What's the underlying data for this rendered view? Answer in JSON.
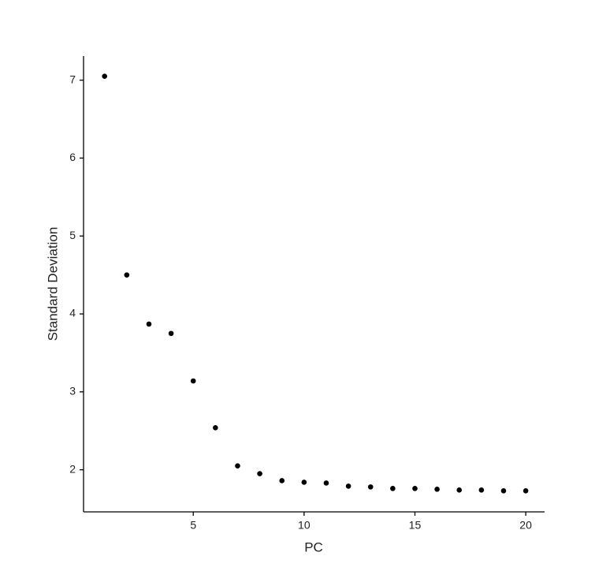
{
  "chart_data": {
    "type": "scatter",
    "xlabel": "PC",
    "ylabel": "Standard Deviation",
    "x": [
      1,
      2,
      3,
      4,
      5,
      6,
      7,
      8,
      9,
      10,
      11,
      12,
      13,
      14,
      15,
      16,
      17,
      18,
      19,
      20
    ],
    "values": [
      7.05,
      4.5,
      3.87,
      3.75,
      3.14,
      2.54,
      2.05,
      1.95,
      1.86,
      1.84,
      1.83,
      1.79,
      1.78,
      1.76,
      1.76,
      1.75,
      1.74,
      1.74,
      1.73,
      1.73
    ],
    "color": "#000000",
    "xlim": [
      0.05,
      20.85
    ],
    "xticks": [
      5,
      10,
      15,
      20
    ],
    "ylim": [
      1.46,
      7.31
    ],
    "yticks": [
      2,
      3,
      4,
      5,
      6,
      7
    ]
  }
}
